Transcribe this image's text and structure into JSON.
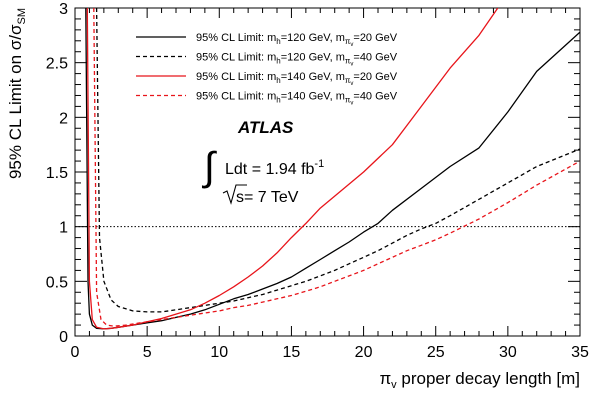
{
  "chart_data": {
    "type": "line",
    "xlabel": "π_v proper decay length [m]",
    "xlabel_parts": {
      "sym": "π",
      "sub": "v",
      "rest": " proper decay length [m]"
    },
    "ylabel": "95% CL Limit on σ/σ_SM",
    "ylabel_parts": {
      "main": "95% CL Limit on σ/σ",
      "sub": "SM"
    },
    "xlim": [
      0,
      35
    ],
    "ylim": [
      0,
      3
    ],
    "xticks": [
      0,
      5,
      10,
      15,
      20,
      25,
      30,
      35
    ],
    "yticks": [
      0,
      0.5,
      1,
      1.5,
      2,
      2.5,
      3
    ],
    "xtick_labels": [
      "0",
      "5",
      "10",
      "15",
      "20",
      "25",
      "30",
      "35"
    ],
    "ytick_labels": [
      "0",
      "0.5",
      "1",
      "1.5",
      "2",
      "2.5",
      "3"
    ],
    "reference_line": {
      "y": 1,
      "style": "dotted"
    },
    "legend_position": "top",
    "series": [
      {
        "name": "95% CL Limit: m_h=120 GeV, m_πv=20 GeV",
        "legend": {
          "a": "95% CL Limit: m",
          "b": "h",
          "c": "=120 GeV, m",
          "d": "π",
          "e": "v",
          "f": "=20 GeV"
        },
        "color": "#000000",
        "dash": "solid",
        "x": [
          0.75,
          0.9,
          1.0,
          1.2,
          1.5,
          2.0,
          2.5,
          3,
          4,
          5,
          6,
          7,
          8,
          9,
          10,
          11,
          12,
          13,
          14,
          15,
          16,
          17,
          18,
          19,
          20,
          21,
          22,
          24,
          26,
          28,
          30,
          32,
          35
        ],
        "y": [
          3.0,
          0.5,
          0.2,
          0.1,
          0.07,
          0.065,
          0.07,
          0.08,
          0.1,
          0.12,
          0.14,
          0.17,
          0.2,
          0.24,
          0.29,
          0.34,
          0.38,
          0.43,
          0.48,
          0.54,
          0.62,
          0.7,
          0.78,
          0.86,
          0.95,
          1.03,
          1.15,
          1.35,
          1.55,
          1.72,
          2.05,
          2.42,
          2.78
        ]
      },
      {
        "name": "95% CL Limit: m_h=120 GeV, m_πv=40 GeV",
        "legend": {
          "a": "95% CL Limit: m",
          "b": "h",
          "c": "=120 GeV, m",
          "d": "π",
          "e": "v",
          "f": "=40 GeV"
        },
        "color": "#000000",
        "dash": "dashed",
        "x": [
          1.5,
          1.7,
          2.0,
          2.5,
          3,
          4,
          5,
          6,
          7,
          8,
          9,
          10,
          11,
          12,
          13,
          14,
          15,
          16,
          17,
          18,
          19,
          20,
          21,
          22,
          23,
          24,
          25,
          26,
          28,
          30,
          32,
          35
        ],
        "y": [
          3.0,
          0.9,
          0.5,
          0.33,
          0.27,
          0.23,
          0.22,
          0.22,
          0.24,
          0.26,
          0.28,
          0.3,
          0.32,
          0.35,
          0.38,
          0.42,
          0.46,
          0.5,
          0.55,
          0.6,
          0.66,
          0.72,
          0.78,
          0.85,
          0.92,
          0.98,
          1.03,
          1.1,
          1.25,
          1.4,
          1.55,
          1.71
        ]
      },
      {
        "name": "95% CL Limit: m_h=140 GeV, m_πv=20 GeV",
        "legend": {
          "a": "95% CL Limit: m",
          "b": "h",
          "c": "=140 GeV, m",
          "d": "π",
          "e": "v",
          "f": "=20 GeV"
        },
        "color": "#e8151b",
        "dash": "solid",
        "x": [
          0.85,
          1.0,
          1.2,
          1.5,
          2.0,
          2.5,
          3,
          4,
          5,
          6,
          7,
          8,
          9,
          10,
          11,
          12,
          13,
          14,
          15,
          16,
          17,
          18,
          20,
          22,
          24,
          26,
          28,
          29.3
        ],
        "y": [
          3.0,
          0.5,
          0.15,
          0.08,
          0.065,
          0.07,
          0.08,
          0.1,
          0.13,
          0.16,
          0.2,
          0.24,
          0.3,
          0.37,
          0.45,
          0.54,
          0.64,
          0.76,
          0.9,
          1.03,
          1.17,
          1.28,
          1.5,
          1.75,
          2.1,
          2.45,
          2.75,
          3.0
        ]
      },
      {
        "name": "95% CL Limit: m_h=140 GeV, m_πv=40 GeV",
        "legend": {
          "a": "95% CL Limit: m",
          "b": "h",
          "c": "=140 GeV, m",
          "d": "π",
          "e": "v",
          "f": "=40 GeV"
        },
        "color": "#e8151b",
        "dash": "dashed",
        "x": [
          1.3,
          1.5,
          1.8,
          2.2,
          2.7,
          3.5,
          4,
          5,
          6,
          7,
          8,
          9,
          10,
          11,
          12,
          13,
          14,
          15,
          16,
          17,
          18,
          19,
          20,
          21,
          22,
          23,
          24,
          25,
          26,
          28,
          30,
          32,
          35
        ],
        "y": [
          3.0,
          0.4,
          0.15,
          0.1,
          0.09,
          0.1,
          0.11,
          0.13,
          0.15,
          0.17,
          0.19,
          0.21,
          0.23,
          0.26,
          0.28,
          0.31,
          0.34,
          0.37,
          0.41,
          0.45,
          0.5,
          0.55,
          0.6,
          0.66,
          0.72,
          0.78,
          0.83,
          0.88,
          0.94,
          1.07,
          1.22,
          1.38,
          1.6
        ]
      }
    ],
    "annotations": {
      "experiment": "ATLAS",
      "lumi_prefix": "Ldt = 1.94 fb",
      "lumi_exp": "-1",
      "energy": "s= 7 TeV"
    }
  }
}
